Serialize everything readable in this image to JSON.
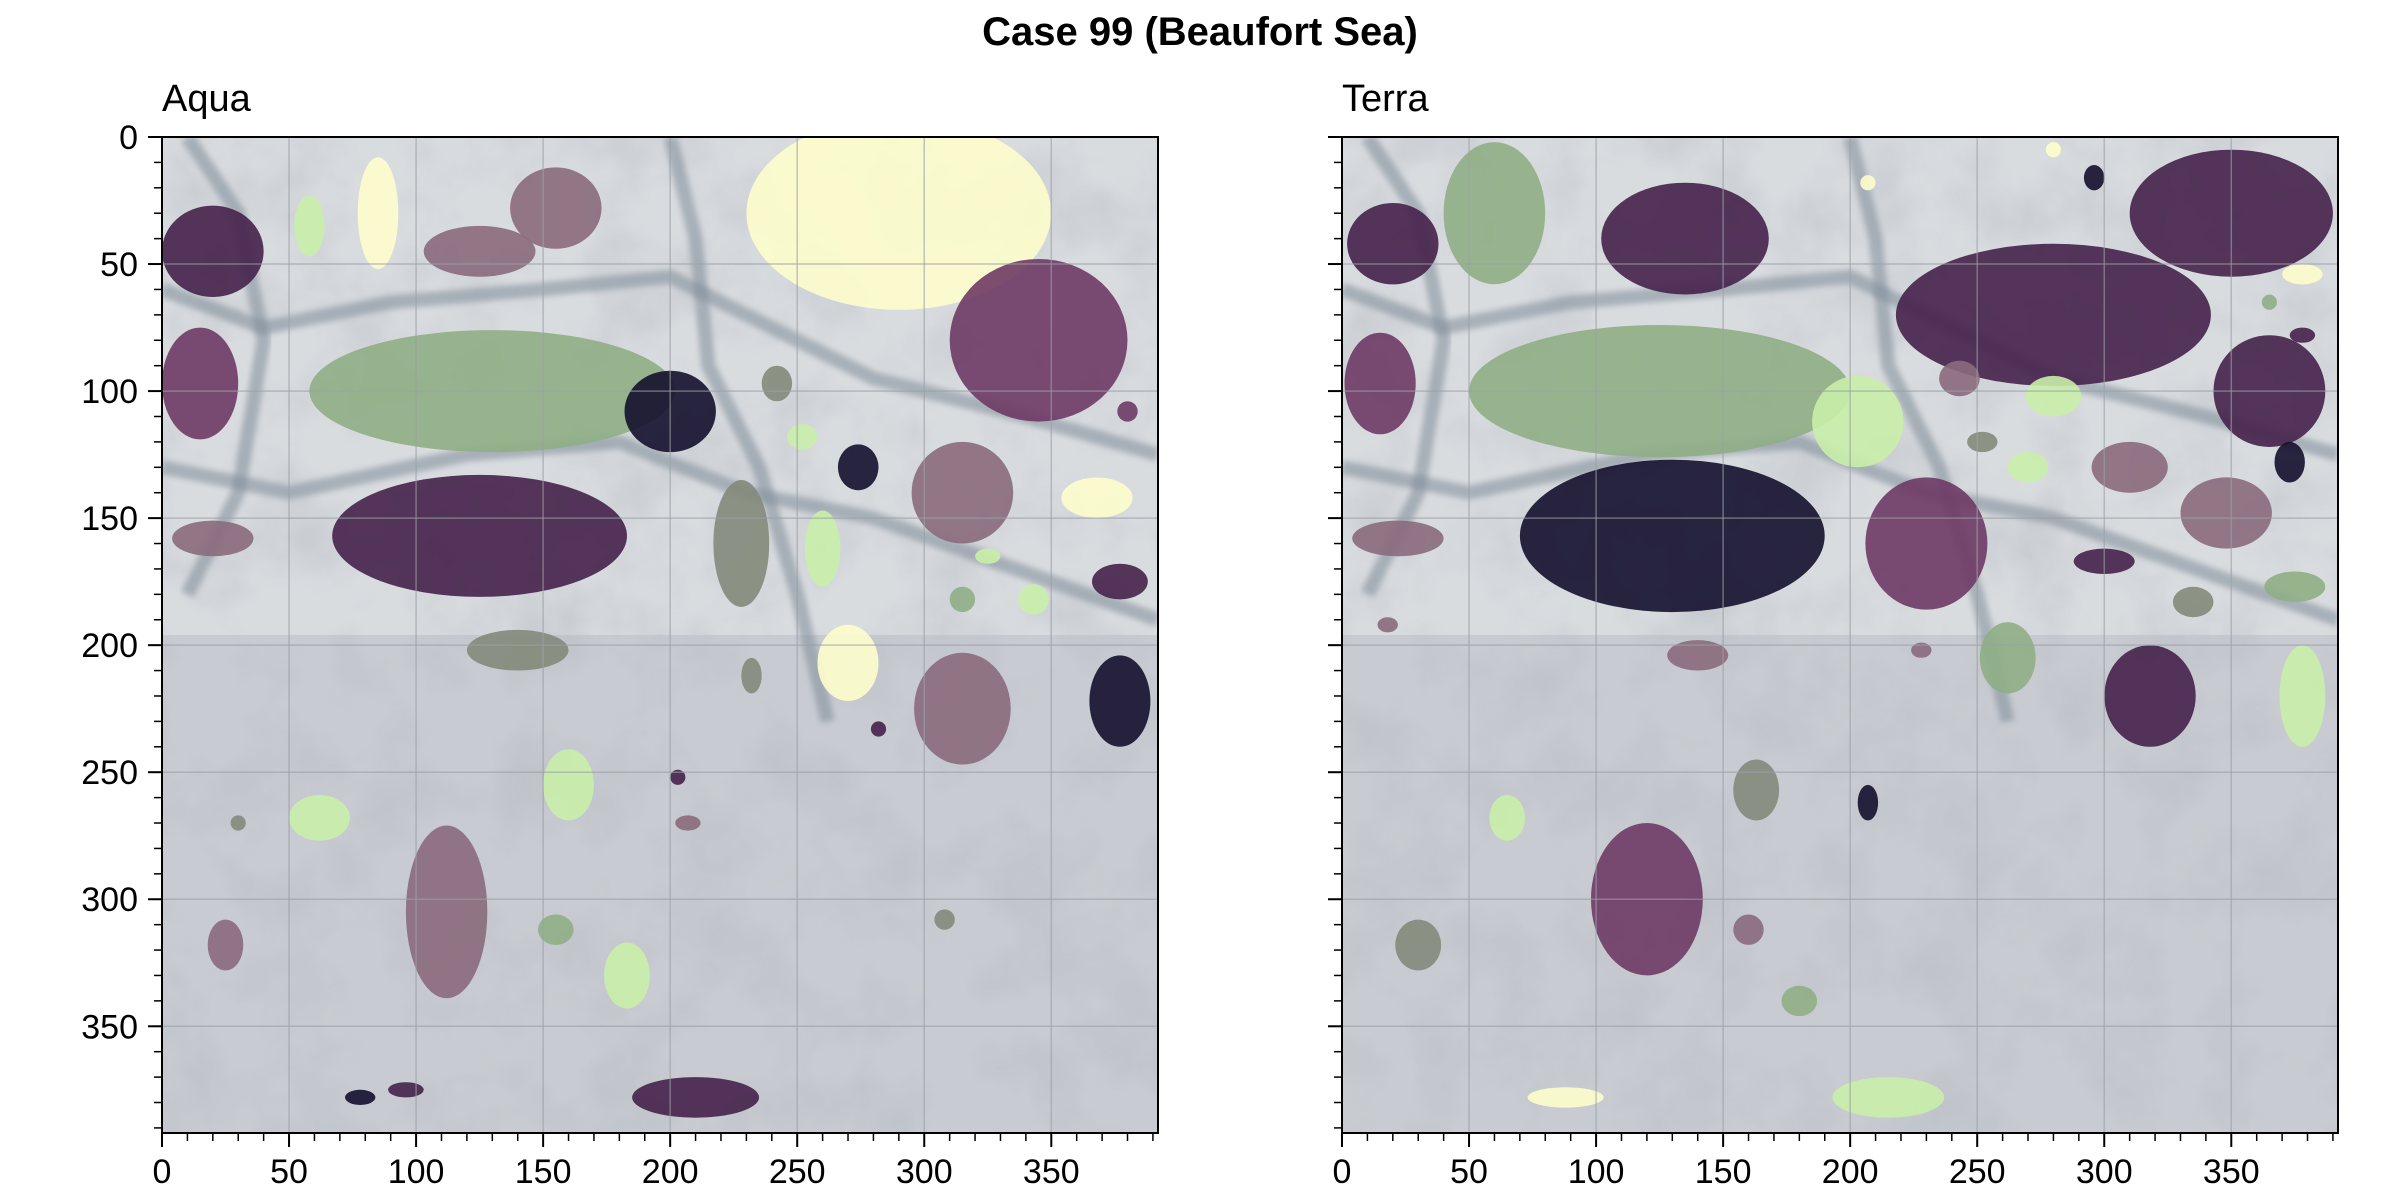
{
  "figure": {
    "title": "Case 99 (Beaufort Sea)"
  },
  "panels": [
    {
      "id": "aqua",
      "title": "Aqua",
      "show_y_tick_labels": true
    },
    {
      "id": "terra",
      "title": "Terra",
      "show_y_tick_labels": false
    }
  ],
  "axes": {
    "x_ticks": [
      0,
      50,
      100,
      150,
      200,
      250,
      300,
      350
    ],
    "y_ticks": [
      0,
      50,
      100,
      150,
      200,
      250,
      300,
      350
    ],
    "x_range": [
      0,
      392
    ],
    "y_range": [
      0,
      392
    ],
    "y_inverted": true,
    "grid": true,
    "minor_ticks": true
  },
  "colors": {
    "background_ice": "#d9dcdf",
    "water_lead": "#7f8c99",
    "pale_yellow": "#fdfdcc",
    "light_green": "#c9eeaa",
    "sage_green": "#8fae85",
    "olive_grey": "#838a7a",
    "mauve": "#8a6a7c",
    "plum": "#6e3a65",
    "dark_plum": "#45214a",
    "near_black": "#140f2e",
    "grid": "#9aa0a6"
  },
  "image_content": {
    "aqua_floes": [
      {
        "cx": 20,
        "cy": 45,
        "rx": 20,
        "ry": 18,
        "color": "dark_plum"
      },
      {
        "cx": 15,
        "cy": 97,
        "rx": 15,
        "ry": 22,
        "color": "plum"
      },
      {
        "cx": 58,
        "cy": 35,
        "rx": 6,
        "ry": 12,
        "color": "light_green"
      },
      {
        "cx": 85,
        "cy": 30,
        "rx": 8,
        "ry": 22,
        "color": "pale_yellow"
      },
      {
        "cx": 155,
        "cy": 28,
        "rx": 18,
        "ry": 16,
        "color": "mauve"
      },
      {
        "cx": 125,
        "cy": 45,
        "rx": 22,
        "ry": 10,
        "color": "mauve"
      },
      {
        "cx": 130,
        "cy": 100,
        "rx": 72,
        "ry": 24,
        "color": "sage_green"
      },
      {
        "cx": 290,
        "cy": 30,
        "rx": 60,
        "ry": 38,
        "color": "pale_yellow"
      },
      {
        "cx": 345,
        "cy": 80,
        "rx": 35,
        "ry": 32,
        "color": "plum"
      },
      {
        "cx": 200,
        "cy": 108,
        "rx": 18,
        "ry": 16,
        "color": "near_black"
      },
      {
        "cx": 242,
        "cy": 97,
        "rx": 6,
        "ry": 7,
        "color": "olive_grey"
      },
      {
        "cx": 252,
        "cy": 118,
        "rx": 6,
        "ry": 5,
        "color": "light_green"
      },
      {
        "cx": 274,
        "cy": 130,
        "rx": 8,
        "ry": 9,
        "color": "near_black"
      },
      {
        "cx": 315,
        "cy": 140,
        "rx": 20,
        "ry": 20,
        "color": "mauve"
      },
      {
        "cx": 380,
        "cy": 108,
        "rx": 4,
        "ry": 4,
        "color": "plum"
      },
      {
        "cx": 368,
        "cy": 142,
        "rx": 14,
        "ry": 8,
        "color": "pale_yellow"
      },
      {
        "cx": 20,
        "cy": 158,
        "rx": 16,
        "ry": 7,
        "color": "mauve"
      },
      {
        "cx": 125,
        "cy": 157,
        "rx": 58,
        "ry": 24,
        "color": "dark_plum"
      },
      {
        "cx": 228,
        "cy": 160,
        "rx": 11,
        "ry": 25,
        "color": "olive_grey"
      },
      {
        "cx": 260,
        "cy": 162,
        "rx": 7,
        "ry": 15,
        "color": "light_green"
      },
      {
        "cx": 325,
        "cy": 165,
        "rx": 5,
        "ry": 3,
        "color": "light_green"
      },
      {
        "cx": 315,
        "cy": 182,
        "rx": 5,
        "ry": 5,
        "color": "sage_green"
      },
      {
        "cx": 343,
        "cy": 182,
        "rx": 6,
        "ry": 6,
        "color": "light_green"
      },
      {
        "cx": 377,
        "cy": 175,
        "rx": 11,
        "ry": 7,
        "color": "dark_plum"
      },
      {
        "cx": 140,
        "cy": 202,
        "rx": 20,
        "ry": 8,
        "color": "olive_grey"
      },
      {
        "cx": 270,
        "cy": 207,
        "rx": 12,
        "ry": 15,
        "color": "pale_yellow"
      },
      {
        "cx": 232,
        "cy": 212,
        "rx": 4,
        "ry": 7,
        "color": "olive_grey"
      },
      {
        "cx": 315,
        "cy": 225,
        "rx": 19,
        "ry": 22,
        "color": "mauve"
      },
      {
        "cx": 377,
        "cy": 222,
        "rx": 12,
        "ry": 18,
        "color": "near_black"
      },
      {
        "cx": 282,
        "cy": 233,
        "rx": 3,
        "ry": 3,
        "color": "dark_plum"
      },
      {
        "cx": 160,
        "cy": 255,
        "rx": 10,
        "ry": 14,
        "color": "light_green"
      },
      {
        "cx": 203,
        "cy": 252,
        "rx": 3,
        "ry": 3,
        "color": "dark_plum"
      },
      {
        "cx": 207,
        "cy": 270,
        "rx": 5,
        "ry": 3,
        "color": "mauve"
      },
      {
        "cx": 62,
        "cy": 268,
        "rx": 12,
        "ry": 9,
        "color": "light_green"
      },
      {
        "cx": 30,
        "cy": 270,
        "rx": 3,
        "ry": 3,
        "color": "olive_grey"
      },
      {
        "cx": 112,
        "cy": 305,
        "rx": 16,
        "ry": 34,
        "color": "mauve"
      },
      {
        "cx": 155,
        "cy": 312,
        "rx": 7,
        "ry": 6,
        "color": "sage_green"
      },
      {
        "cx": 183,
        "cy": 330,
        "rx": 9,
        "ry": 13,
        "color": "light_green"
      },
      {
        "cx": 25,
        "cy": 318,
        "rx": 7,
        "ry": 10,
        "color": "mauve"
      },
      {
        "cx": 308,
        "cy": 308,
        "rx": 4,
        "ry": 4,
        "color": "olive_grey"
      },
      {
        "cx": 78,
        "cy": 378,
        "rx": 6,
        "ry": 3,
        "color": "near_black"
      },
      {
        "cx": 96,
        "cy": 375,
        "rx": 7,
        "ry": 3,
        "color": "dark_plum"
      },
      {
        "cx": 210,
        "cy": 378,
        "rx": 25,
        "ry": 8,
        "color": "dark_plum"
      }
    ],
    "terra_floes": [
      {
        "cx": 20,
        "cy": 42,
        "rx": 18,
        "ry": 16,
        "color": "dark_plum"
      },
      {
        "cx": 15,
        "cy": 97,
        "rx": 14,
        "ry": 20,
        "color": "plum"
      },
      {
        "cx": 60,
        "cy": 30,
        "rx": 20,
        "ry": 28,
        "color": "sage_green"
      },
      {
        "cx": 135,
        "cy": 40,
        "rx": 33,
        "ry": 22,
        "color": "dark_plum"
      },
      {
        "cx": 125,
        "cy": 100,
        "rx": 75,
        "ry": 26,
        "color": "sage_green"
      },
      {
        "cx": 280,
        "cy": 5,
        "rx": 3,
        "ry": 3,
        "color": "pale_yellow"
      },
      {
        "cx": 207,
        "cy": 18,
        "rx": 3,
        "ry": 3,
        "color": "pale_yellow"
      },
      {
        "cx": 296,
        "cy": 16,
        "rx": 4,
        "ry": 5,
        "color": "near_black"
      },
      {
        "cx": 350,
        "cy": 30,
        "rx": 40,
        "ry": 25,
        "color": "dark_plum"
      },
      {
        "cx": 280,
        "cy": 70,
        "rx": 62,
        "ry": 28,
        "color": "dark_plum"
      },
      {
        "cx": 365,
        "cy": 100,
        "rx": 22,
        "ry": 22,
        "color": "dark_plum"
      },
      {
        "cx": 378,
        "cy": 54,
        "rx": 8,
        "ry": 4,
        "color": "pale_yellow"
      },
      {
        "cx": 365,
        "cy": 65,
        "rx": 3,
        "ry": 3,
        "color": "sage_green"
      },
      {
        "cx": 378,
        "cy": 78,
        "rx": 5,
        "ry": 3,
        "color": "dark_plum"
      },
      {
        "cx": 203,
        "cy": 112,
        "rx": 18,
        "ry": 18,
        "color": "light_green"
      },
      {
        "cx": 243,
        "cy": 95,
        "rx": 8,
        "ry": 7,
        "color": "mauve"
      },
      {
        "cx": 280,
        "cy": 102,
        "rx": 11,
        "ry": 8,
        "color": "light_green"
      },
      {
        "cx": 252,
        "cy": 120,
        "rx": 6,
        "ry": 4,
        "color": "olive_grey"
      },
      {
        "cx": 270,
        "cy": 130,
        "rx": 8,
        "ry": 6,
        "color": "light_green"
      },
      {
        "cx": 310,
        "cy": 130,
        "rx": 15,
        "ry": 10,
        "color": "mauve"
      },
      {
        "cx": 373,
        "cy": 128,
        "rx": 6,
        "ry": 8,
        "color": "near_black"
      },
      {
        "cx": 348,
        "cy": 148,
        "rx": 18,
        "ry": 14,
        "color": "mauve"
      },
      {
        "cx": 22,
        "cy": 158,
        "rx": 18,
        "ry": 7,
        "color": "mauve"
      },
      {
        "cx": 130,
        "cy": 157,
        "rx": 60,
        "ry": 30,
        "color": "near_black"
      },
      {
        "cx": 230,
        "cy": 160,
        "rx": 24,
        "ry": 26,
        "color": "plum"
      },
      {
        "cx": 300,
        "cy": 167,
        "rx": 12,
        "ry": 5,
        "color": "dark_plum"
      },
      {
        "cx": 375,
        "cy": 177,
        "rx": 12,
        "ry": 6,
        "color": "sage_green"
      },
      {
        "cx": 335,
        "cy": 183,
        "rx": 8,
        "ry": 6,
        "color": "olive_grey"
      },
      {
        "cx": 18,
        "cy": 192,
        "rx": 4,
        "ry": 3,
        "color": "mauve"
      },
      {
        "cx": 140,
        "cy": 204,
        "rx": 12,
        "ry": 6,
        "color": "mauve"
      },
      {
        "cx": 228,
        "cy": 202,
        "rx": 4,
        "ry": 3,
        "color": "mauve"
      },
      {
        "cx": 262,
        "cy": 205,
        "rx": 11,
        "ry": 14,
        "color": "sage_green"
      },
      {
        "cx": 318,
        "cy": 220,
        "rx": 18,
        "ry": 20,
        "color": "dark_plum"
      },
      {
        "cx": 378,
        "cy": 220,
        "rx": 9,
        "ry": 20,
        "color": "light_green"
      },
      {
        "cx": 163,
        "cy": 257,
        "rx": 9,
        "ry": 12,
        "color": "olive_grey"
      },
      {
        "cx": 207,
        "cy": 262,
        "rx": 4,
        "ry": 7,
        "color": "near_black"
      },
      {
        "cx": 65,
        "cy": 268,
        "rx": 7,
        "ry": 9,
        "color": "light_green"
      },
      {
        "cx": 120,
        "cy": 300,
        "rx": 22,
        "ry": 30,
        "color": "plum"
      },
      {
        "cx": 160,
        "cy": 312,
        "rx": 6,
        "ry": 6,
        "color": "mauve"
      },
      {
        "cx": 30,
        "cy": 318,
        "rx": 9,
        "ry": 10,
        "color": "olive_grey"
      },
      {
        "cx": 180,
        "cy": 340,
        "rx": 7,
        "ry": 6,
        "color": "sage_green"
      },
      {
        "cx": 88,
        "cy": 378,
        "rx": 15,
        "ry": 4,
        "color": "pale_yellow"
      },
      {
        "cx": 215,
        "cy": 378,
        "rx": 22,
        "ry": 8,
        "color": "light_green"
      }
    ]
  }
}
